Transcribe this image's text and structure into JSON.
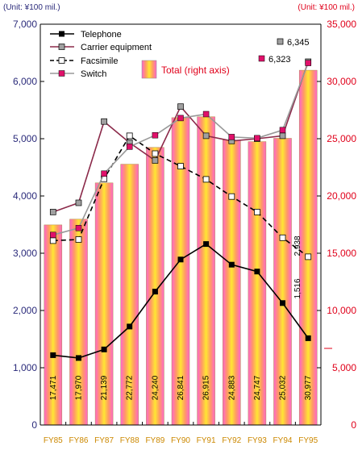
{
  "chart_data": {
    "type": "bar+line",
    "left_unit": "(Unit: ¥100 mil.)",
    "right_unit": "(Unit: ¥100 mil.)",
    "categories": [
      "FY85",
      "FY86",
      "FY87",
      "FY88",
      "FY89",
      "FY90",
      "FY91",
      "FY92",
      "FY93",
      "FY94",
      "FY95"
    ],
    "left_axis": {
      "ylim": [
        0,
        7000
      ],
      "ticks": [
        0,
        1000,
        2000,
        3000,
        4000,
        5000,
        6000,
        7000
      ],
      "tick_labels": [
        "0",
        "1,000",
        "2,000",
        "3,000",
        "4,000",
        "5,000",
        "6,000",
        "7,000"
      ]
    },
    "right_axis": {
      "ylim": [
        0,
        35000
      ],
      "ticks": [
        0,
        5000,
        10000,
        15000,
        20000,
        25000,
        30000,
        35000
      ],
      "tick_labels": [
        "0",
        "5,000",
        "10,000",
        "15,000",
        "20,000",
        "25,000",
        "30,000",
        "35,000"
      ]
    },
    "bars": {
      "name": "Total (right axis)",
      "axis": "right",
      "values": [
        17471,
        17970,
        21139,
        22772,
        24240,
        26841,
        26915,
        24883,
        24747,
        25032,
        30977
      ],
      "labels": [
        "17,471",
        "17,970",
        "21,139",
        "22,772",
        "24,240",
        "26,841",
        "26,915",
        "24,883",
        "24,747",
        "25,032",
        "30,977"
      ]
    },
    "series": [
      {
        "name": "Telephone",
        "axis": "left",
        "color": "#000000",
        "marker": "square-filled",
        "dash": "",
        "values": [
          1220,
          1170,
          1320,
          1720,
          2330,
          2890,
          3160,
          2800,
          2680,
          2130,
          1516
        ]
      },
      {
        "name": "Carrier equipment",
        "axis": "left",
        "color": "#8b2a4a",
        "marker": "square-hollow-gray",
        "dash": "",
        "values": [
          3720,
          3880,
          5300,
          4930,
          4620,
          5560,
          5050,
          4960,
          5000,
          5050,
          6345
        ]
      },
      {
        "name": "Facsimile",
        "axis": "left",
        "color": "#000000",
        "marker": "square-hollow-white",
        "dash": "6,4",
        "values": [
          3220,
          3240,
          4300,
          5050,
          4740,
          4520,
          4290,
          3990,
          3720,
          3270,
          2938
        ]
      },
      {
        "name": "Switch",
        "axis": "left",
        "color": "#999999",
        "marker": "square-magenta",
        "dash": "",
        "values": [
          3320,
          3440,
          4390,
          4860,
          5060,
          5360,
          5430,
          5030,
          5010,
          5150,
          6323
        ]
      }
    ],
    "end_labels": {
      "carrier": "6,345",
      "switch": "6,323",
      "facsimile": "2,938",
      "telephone": "1,516"
    },
    "legend": {
      "placement": "top-left",
      "entries": [
        "Telephone",
        "Carrier equipment",
        "Facsimile",
        "Switch"
      ],
      "total_label": "Total (right axis)"
    },
    "colors": {
      "left_axis": "#2a2a7a",
      "right_axis": "#e0001a",
      "bar_gradient": [
        "#ff66cc",
        "#ff9966",
        "#ffe633",
        "#ff9966",
        "#ff66cc"
      ],
      "switch_marker": "#e0106a",
      "carrier_marker": "#a0a0a0",
      "category_labels": "#cc8800"
    },
    "grid": false
  }
}
